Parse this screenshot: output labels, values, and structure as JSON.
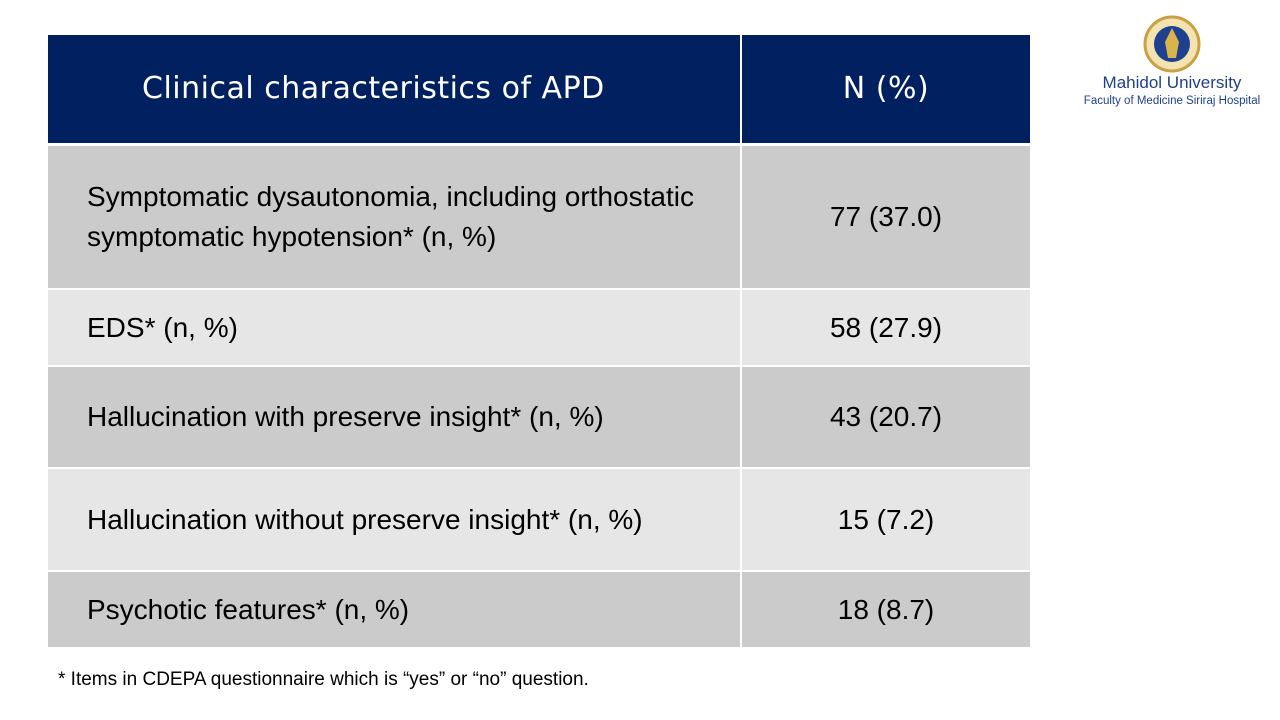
{
  "table": {
    "header": [
      "Clinical characteristics of APD",
      "N (%)"
    ],
    "rows": [
      [
        "Symptomatic dysautonomia, including orthostatic symptomatic hypotension* (n, %)",
        "77 (37.0)"
      ],
      [
        "EDS* (n, %)",
        "58 (27.9)"
      ],
      [
        "Hallucination with preserve insight* (n, %)",
        "43 (20.7)"
      ],
      [
        "Hallucination without preserve insight* (n, %)",
        "15 (7.2)"
      ],
      [
        "Psychotic features* (n, %)",
        "18 (8.7)"
      ]
    ]
  },
  "footnote": "* Items in CDEPA questionnaire which is “yes” or “no” question.",
  "logo": {
    "name": "Mahidol University",
    "subtitle": "Faculty of Medicine Siriraj Hospital"
  }
}
